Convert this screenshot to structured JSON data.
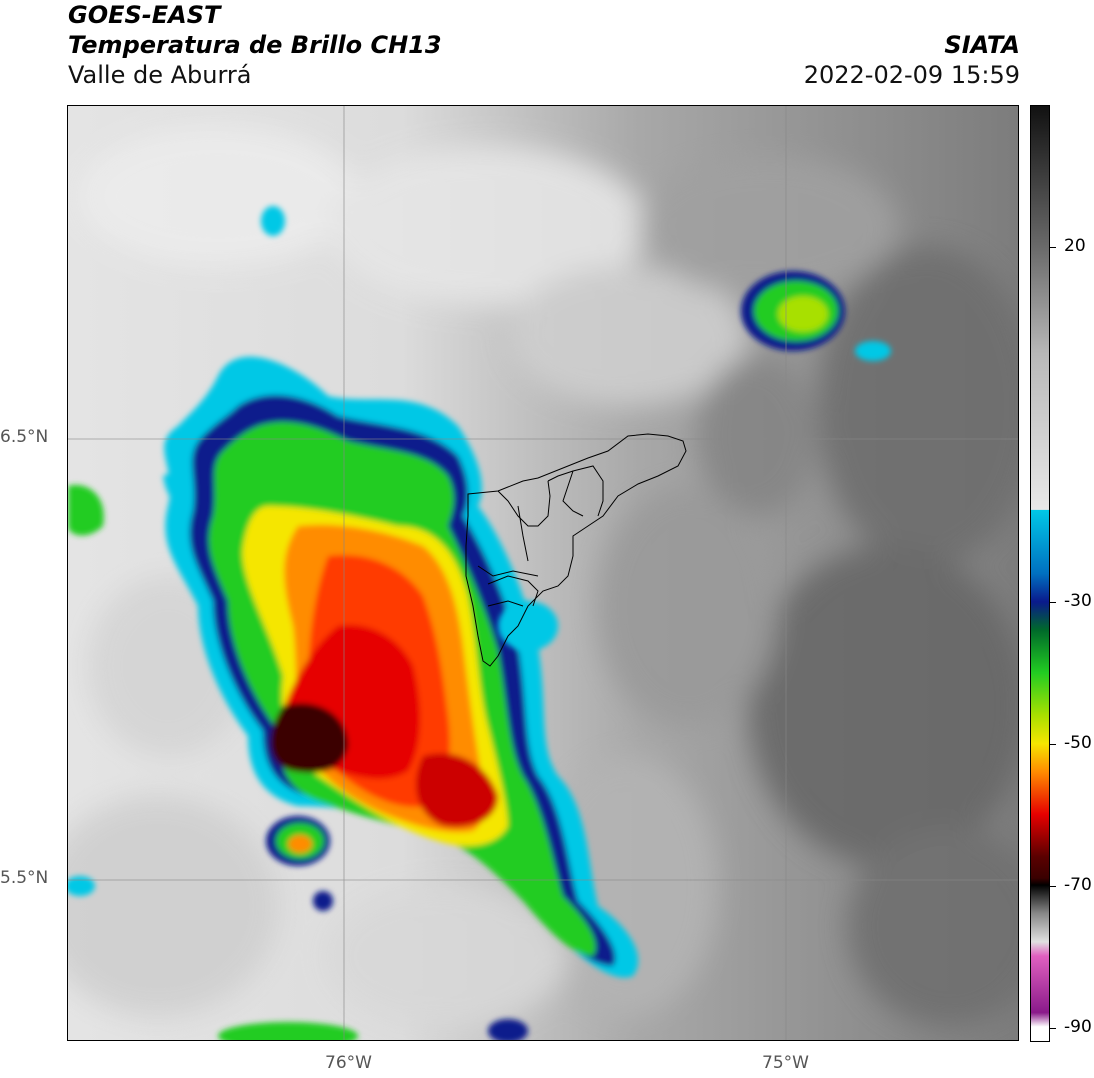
{
  "header": {
    "satellite": "GOES-EAST",
    "product": "Temperatura de Brillo CH13",
    "region": "Valle de Aburrá",
    "agency": "SIATA",
    "timestamp": "2022-02-09 15:59"
  },
  "axes": {
    "lat_labels": [
      "6.5°N",
      "5.5°N"
    ],
    "lon_labels": [
      "76°W",
      "75°W"
    ]
  },
  "colorbar": {
    "tick_labels": [
      "20",
      "-30",
      "-50",
      "-70",
      "-90"
    ],
    "tick_values": [
      20,
      -30,
      -50,
      -70,
      -90
    ],
    "range": [
      -92,
      40
    ],
    "colors": {
      "warm_gray": "#7a7a7a",
      "light_gray": "#e8e8e8",
      "cyan": "#00c8e6",
      "navy": "#0a1a8c",
      "green": "#22cc22",
      "yellow": "#f5e600",
      "orange": "#ff8c00",
      "red": "#e60000",
      "dark_red": "#3a0000",
      "pink": "#e060c0",
      "purple": "#8a1a8a"
    }
  }
}
